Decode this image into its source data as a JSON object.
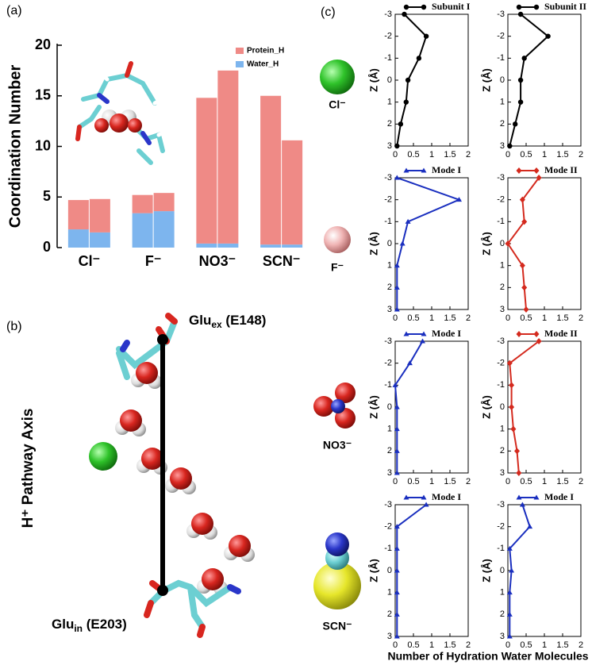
{
  "panel_labels": [
    "(a)",
    "(b)",
    "(c)"
  ],
  "structure": {
    "axis_label": "H⁺ Pathway Axis",
    "glu_ex": {
      "main": "Glu",
      "sub": "ex",
      "tail": " (E148)"
    },
    "glu_in": {
      "main": "Glu",
      "sub": "in",
      "tail": " (E203)"
    }
  },
  "xlabel_c": "Number of Hydration Water Molecules",
  "chart_data": [
    {
      "type": "bar",
      "stacked": true,
      "ylabel": "Coordination Number",
      "categories": [
        "Cl⁻",
        "F⁻",
        "NO3⁻",
        "SCN⁻"
      ],
      "series": [
        {
          "name": "Water_H",
          "color": "#7db5ee",
          "values": [
            [
              1.8,
              1.5
            ],
            [
              3.4,
              3.6
            ],
            [
              0.4,
              0.4
            ],
            [
              0.3,
              0.3
            ]
          ]
        },
        {
          "name": "Protein_H",
          "color": "#ef8a86",
          "values": [
            [
              2.9,
              3.3
            ],
            [
              1.8,
              1.8
            ],
            [
              14.4,
              17.1
            ],
            [
              14.7,
              10.3
            ]
          ]
        }
      ],
      "ylim": [
        0,
        20
      ],
      "yticks": [
        0,
        5,
        10,
        15,
        20
      ],
      "legend": "upper right"
    },
    {
      "type": "line",
      "ylabel": "Z (Å)",
      "z": [
        -3,
        -2,
        -1,
        0,
        1,
        2,
        3
      ],
      "xlim": [
        0,
        2
      ],
      "xticks": [
        0,
        0.5,
        1,
        1.5,
        2
      ],
      "ylim": [
        3,
        -3
      ],
      "yticks": [
        -3,
        -2,
        -1,
        0,
        1,
        2,
        3
      ],
      "series": [
        {
          "name": "Subunit I",
          "color": "#000000",
          "marker": "circle",
          "values": [
            0.25,
            0.85,
            0.65,
            0.35,
            0.3,
            0.15,
            0.05
          ]
        }
      ]
    },
    {
      "type": "line",
      "ylabel": "Z (Å)",
      "z": [
        -3,
        -2,
        -1,
        0,
        1,
        2,
        3
      ],
      "xlim": [
        0,
        2
      ],
      "xticks": [
        0,
        0.5,
        1,
        1.5,
        2
      ],
      "ylim": [
        3,
        -3
      ],
      "yticks": [
        -3,
        -2,
        -1,
        0,
        1,
        2,
        3
      ],
      "series": [
        {
          "name": "Subunit II",
          "color": "#000000",
          "marker": "circle",
          "values": [
            0.35,
            1.1,
            0.45,
            0.35,
            0.35,
            0.2,
            0.05
          ]
        }
      ]
    },
    {
      "type": "line",
      "ylabel": "Z (Å)",
      "z": [
        -3,
        -2,
        -1,
        0,
        1,
        2,
        3
      ],
      "xlim": [
        0,
        2
      ],
      "xticks": [
        0,
        0.5,
        1,
        1.5,
        2
      ],
      "ylim": [
        3,
        -3
      ],
      "yticks": [
        -3,
        -2,
        -1,
        0,
        1,
        2,
        3
      ],
      "series": [
        {
          "name": "Mode I",
          "color": "#1a2fbf",
          "marker": "triangle",
          "values": [
            0.05,
            1.75,
            0.35,
            0.2,
            0.05,
            0.05,
            0.05
          ]
        }
      ]
    },
    {
      "type": "line",
      "ylabel": "Z (Å)",
      "z": [
        -3,
        -2,
        -1,
        0,
        1,
        2,
        3
      ],
      "xlim": [
        0,
        2
      ],
      "xticks": [
        0,
        0.5,
        1,
        1.5,
        2
      ],
      "ylim": [
        3,
        -3
      ],
      "yticks": [
        -3,
        -2,
        -1,
        0,
        1,
        2,
        3
      ],
      "series": [
        {
          "name": "Mode II",
          "color": "#d42a1e",
          "marker": "diamond",
          "values": [
            0.85,
            0.4,
            0.45,
            0.0,
            0.4,
            0.45,
            0.5
          ]
        }
      ]
    },
    {
      "type": "line",
      "ylabel": "Z (Å)",
      "z": [
        -3,
        -2,
        -1,
        0,
        1,
        2,
        3
      ],
      "xlim": [
        0,
        2
      ],
      "xticks": [
        0,
        0.5,
        1,
        1.5,
        2
      ],
      "ylim": [
        3,
        -3
      ],
      "yticks": [
        -3,
        -2,
        -1,
        0,
        1,
        2,
        3
      ],
      "series": [
        {
          "name": "Mode I",
          "color": "#1a2fbf",
          "marker": "triangle",
          "values": [
            0.75,
            0.4,
            0.0,
            0.05,
            0.05,
            0.05,
            0.05
          ]
        }
      ]
    },
    {
      "type": "line",
      "ylabel": "Z (Å)",
      "z": [
        -3,
        -2,
        -1,
        0,
        1,
        2,
        3
      ],
      "xlim": [
        0,
        2
      ],
      "xticks": [
        0,
        0.5,
        1,
        1.5,
        2
      ],
      "ylim": [
        3,
        -3
      ],
      "yticks": [
        -3,
        -2,
        -1,
        0,
        1,
        2,
        3
      ],
      "series": [
        {
          "name": "Mode II",
          "color": "#d42a1e",
          "marker": "diamond",
          "values": [
            0.85,
            0.05,
            0.1,
            0.1,
            0.15,
            0.25,
            0.3
          ]
        }
      ]
    },
    {
      "type": "line",
      "ylabel": "Z (Å)",
      "z": [
        -3,
        -2,
        -1,
        0,
        1,
        2,
        3
      ],
      "xlim": [
        0,
        2
      ],
      "xticks": [
        0,
        0.5,
        1,
        1.5,
        2
      ],
      "ylim": [
        3,
        -3
      ],
      "yticks": [
        -3,
        -2,
        -1,
        0,
        1,
        2,
        3
      ],
      "series": [
        {
          "name": "Mode I",
          "color": "#1a2fbf",
          "marker": "triangle",
          "values": [
            0.85,
            0.05,
            0.05,
            0.05,
            0.05,
            0.05,
            0.05
          ]
        }
      ]
    },
    {
      "type": "line",
      "ylabel": "Z (Å)",
      "z": [
        -3,
        -2,
        -1,
        0,
        1,
        2,
        3
      ],
      "xlim": [
        0,
        2
      ],
      "xticks": [
        0,
        0.5,
        1,
        1.5,
        2
      ],
      "ylim": [
        3,
        -3
      ],
      "yticks": [
        -3,
        -2,
        -1,
        0,
        1,
        2,
        3
      ],
      "series": [
        {
          "name": "Mode I",
          "color": "#1a2fbf",
          "marker": "triangle",
          "values": [
            0.4,
            0.6,
            0.05,
            0.1,
            0.05,
            0.05,
            0.05
          ]
        }
      ]
    }
  ]
}
